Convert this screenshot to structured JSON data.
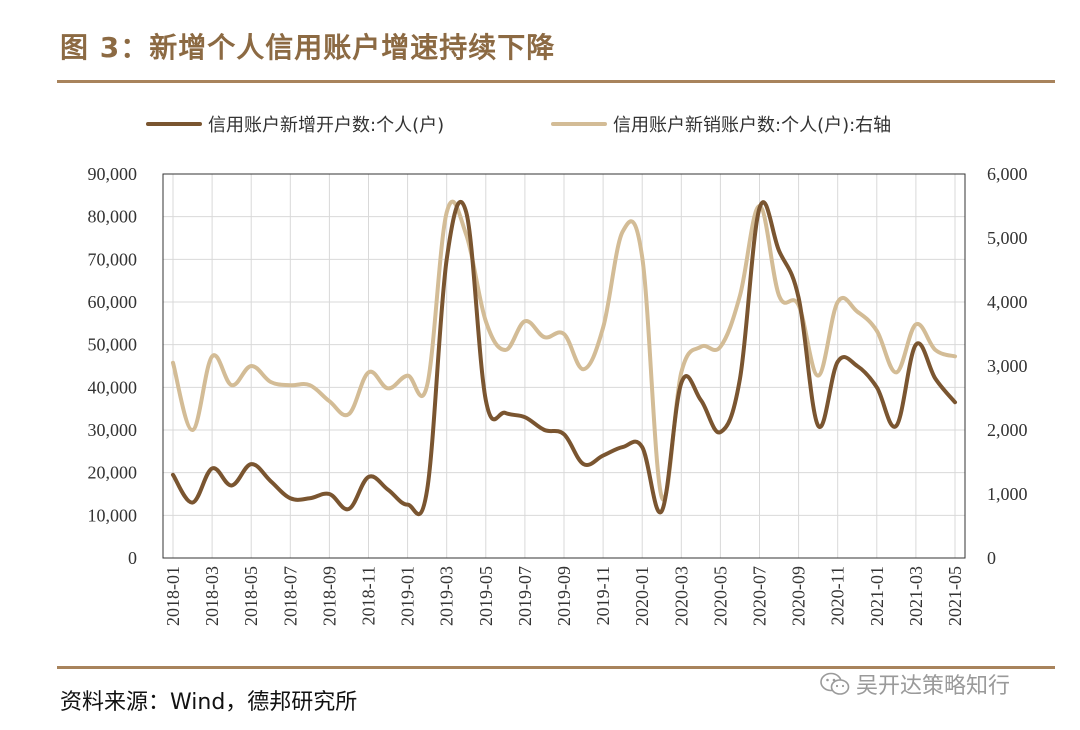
{
  "figure": {
    "title": "图 3：新增个人信用账户增速持续下降",
    "source": "资料来源：Wind，德邦研究所",
    "watermark": "吴开达策略知行"
  },
  "chart_data": {
    "type": "line",
    "title": "图 3：新增个人信用账户增速持续下降",
    "grid": true,
    "legend_position": "top",
    "x": [
      "2018-01",
      "2018-02",
      "2018-03",
      "2018-04",
      "2018-05",
      "2018-06",
      "2018-07",
      "2018-08",
      "2018-09",
      "2018-10",
      "2018-11",
      "2018-12",
      "2019-01",
      "2019-02",
      "2019-03",
      "2019-04",
      "2019-05",
      "2019-06",
      "2019-07",
      "2019-08",
      "2019-09",
      "2019-10",
      "2019-11",
      "2019-12",
      "2020-01",
      "2020-02",
      "2020-03",
      "2020-04",
      "2020-05",
      "2020-06",
      "2020-07",
      "2020-08",
      "2020-09",
      "2020-10",
      "2020-11",
      "2020-12",
      "2021-01",
      "2021-02",
      "2021-03",
      "2021-04",
      "2021-05"
    ],
    "x_tick_labels": [
      "2018-01",
      "2018-03",
      "2018-05",
      "2018-07",
      "2018-09",
      "2018-11",
      "2019-01",
      "2019-03",
      "2019-05",
      "2019-07",
      "2019-09",
      "2019-11",
      "2020-01",
      "2020-03",
      "2020-05",
      "2020-07",
      "2020-09",
      "2020-11",
      "2021-01",
      "2021-03",
      "2021-05"
    ],
    "left_axis": {
      "ylim": [
        0,
        90000
      ],
      "ticks": [
        "0",
        "10,000",
        "20,000",
        "30,000",
        "40,000",
        "50,000",
        "60,000",
        "70,000",
        "80,000",
        "90,000"
      ]
    },
    "right_axis": {
      "ylim": [
        0,
        6000
      ],
      "ticks": [
        "0",
        "1,000",
        "2,000",
        "3,000",
        "4,000",
        "5,000",
        "6,000"
      ]
    },
    "series": [
      {
        "name": "信用账户新增开户数:个人(户)",
        "axis": "left",
        "color": "#7a5530",
        "values": [
          19500,
          13000,
          21000,
          17000,
          22000,
          18000,
          14000,
          14000,
          15000,
          11500,
          19000,
          16000,
          12500,
          16000,
          70000,
          81000,
          37000,
          34000,
          33000,
          30000,
          29000,
          22000,
          24000,
          26000,
          26000,
          11000,
          41000,
          37000,
          29500,
          42000,
          82000,
          72000,
          61000,
          31000,
          46000,
          45000,
          40000,
          31000,
          50000,
          42000,
          36500
        ]
      },
      {
        "name": "信用账户新销账户数:个人(户):右轴",
        "axis": "right",
        "color": "#d3bc96",
        "values": [
          3050,
          2000,
          3150,
          2700,
          3000,
          2750,
          2700,
          2700,
          2450,
          2250,
          2900,
          2650,
          2850,
          2700,
          5400,
          5050,
          3700,
          3250,
          3700,
          3450,
          3500,
          2950,
          3600,
          5100,
          4700,
          950,
          2900,
          3300,
          3300,
          4100,
          5500,
          4100,
          3950,
          2850,
          4000,
          3850,
          3550,
          2900,
          3650,
          3250,
          3150
        ]
      }
    ]
  }
}
